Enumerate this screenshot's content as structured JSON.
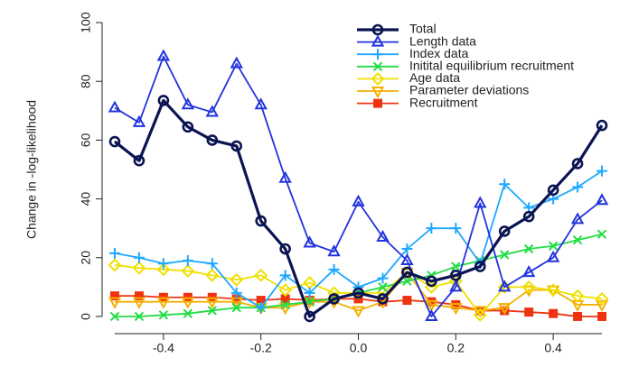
{
  "chart_data": {
    "type": "line",
    "y_label": "Change in -log-likelihood",
    "x": [
      -0.5,
      -0.45,
      -0.4,
      -0.35,
      -0.3,
      -0.25,
      -0.2,
      -0.15,
      -0.1,
      -0.05,
      0,
      0.05,
      0.1,
      0.15,
      0.2,
      0.25,
      0.3,
      0.35,
      0.4,
      0.45,
      0.5
    ],
    "xlim": [
      -0.52,
      0.52
    ],
    "xticks": [
      -0.4,
      -0.2,
      {
        "value": 0,
        "label": "0.0"
      },
      0.2,
      0.4
    ],
    "ylim": [
      -4,
      104
    ],
    "yticks": [
      0,
      20,
      40,
      60,
      80,
      100
    ],
    "legend": "top-right",
    "series": [
      {
        "name": "Total",
        "color": "#0b1452",
        "marker": "circle",
        "values": [
          59.5,
          53,
          73.5,
          64.5,
          60,
          58,
          32.5,
          23,
          0,
          6,
          8,
          6,
          15,
          12,
          14,
          17,
          29,
          34,
          43,
          52,
          65
        ]
      },
      {
        "name": "Length data",
        "color": "#2233dd",
        "marker": "triangle-up",
        "values": [
          71,
          66,
          88.5,
          72,
          69.5,
          86,
          72,
          47,
          25,
          22,
          39,
          27,
          19,
          0,
          10,
          38.5,
          10,
          15,
          20,
          33,
          39.5
        ]
      },
      {
        "name": "Index data",
        "color": "#1ea8ff",
        "marker": "plus",
        "values": [
          21.5,
          20,
          18,
          19,
          18,
          8,
          3,
          14,
          8,
          16,
          10,
          13,
          23,
          30,
          30,
          18,
          45,
          37,
          40,
          44,
          49.5
        ]
      },
      {
        "name": "Initital equilibrium recruitment",
        "color": "#22dd44",
        "marker": "cross",
        "values": [
          0,
          0,
          0.5,
          1,
          2,
          3,
          3,
          4,
          5,
          6,
          8,
          10,
          12,
          14,
          17,
          19,
          21,
          23,
          24,
          26,
          28
        ]
      },
      {
        "name": "Age data",
        "color": "#f0e000",
        "marker": "diamond",
        "values": [
          17.5,
          16.5,
          16,
          15.5,
          14,
          12.5,
          14,
          9,
          11.5,
          8,
          8,
          8,
          15,
          10,
          12,
          0.5,
          10,
          10,
          9,
          7,
          6
        ]
      },
      {
        "name": "Parameter deviations",
        "color": "#f5b000",
        "marker": "triangle-down",
        "values": [
          5,
          5,
          5,
          5,
          5,
          5,
          3,
          3,
          5,
          5,
          2,
          5,
          15,
          4,
          3,
          2,
          3,
          9,
          9,
          4,
          4
        ]
      },
      {
        "name": "Recruitment",
        "color": "#ee3311",
        "marker": "square",
        "values": [
          7,
          7,
          6.5,
          6.5,
          6.5,
          6,
          5.5,
          6,
          5.5,
          6,
          6,
          5,
          5.5,
          5,
          4,
          2,
          2,
          1.5,
          1,
          0,
          0
        ]
      }
    ]
  }
}
